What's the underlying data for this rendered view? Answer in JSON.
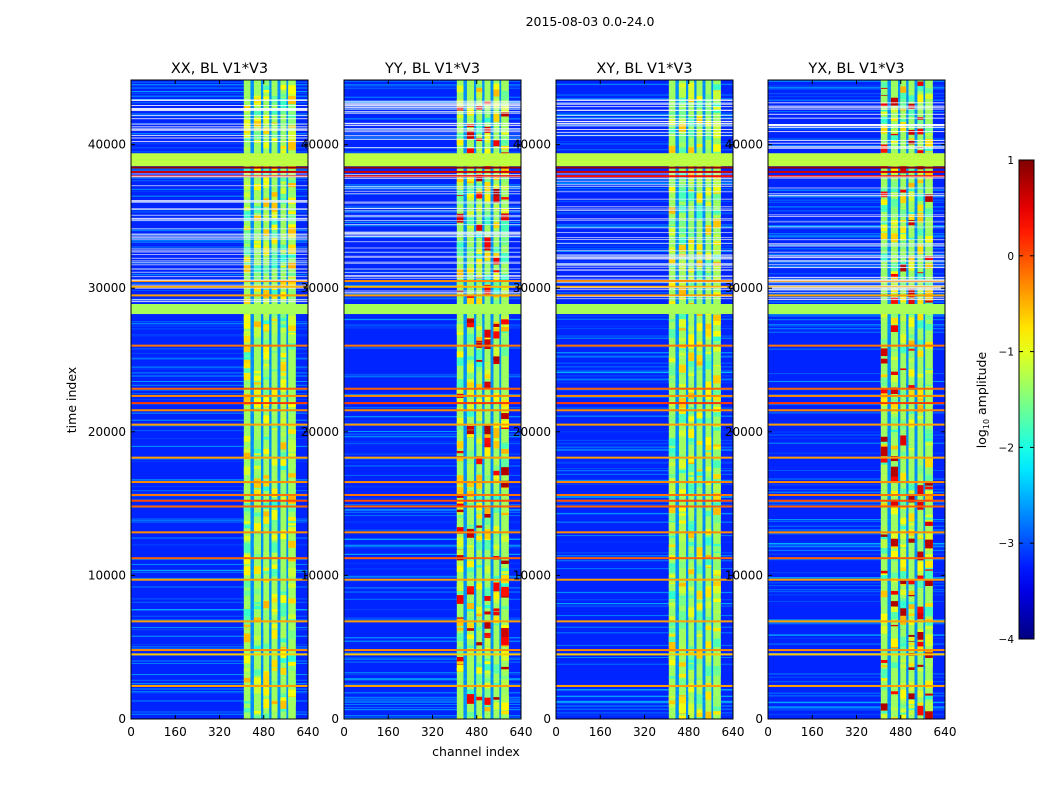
{
  "chart_data": {
    "type": "heatmap",
    "suptitle": "2015-08-03 0.0-24.0",
    "xlabel": "channel index",
    "ylabel": "time index",
    "xlim": [
      0,
      640
    ],
    "ylim": [
      0,
      44500
    ],
    "xticks": [
      0,
      160,
      320,
      480,
      640
    ],
    "yticks": [
      0,
      10000,
      20000,
      30000,
      40000
    ],
    "panels": [
      {
        "title": "XX, BL V1*V3",
        "product": "XX"
      },
      {
        "title": "YY, BL V1*V3",
        "product": "YY"
      },
      {
        "title": "XY, BL V1*V3",
        "product": "XY"
      },
      {
        "title": "YX, BL V1*V3",
        "product": "YX"
      }
    ],
    "background_level": -3.2,
    "rfi_channel_band": [
      408,
      600
    ],
    "rfi_channel_columns": [
      [
        408,
        432
      ],
      [
        444,
        470
      ],
      [
        478,
        500
      ],
      [
        508,
        530
      ],
      [
        540,
        562
      ],
      [
        568,
        596
      ]
    ],
    "flagged_time_blocks": [
      {
        "start": 38500,
        "end": 39400,
        "level": -1.2
      },
      {
        "start": 28200,
        "end": 28900,
        "level": -1.3
      }
    ],
    "strong_time_lines": [
      {
        "t": 38400,
        "level": 0.9
      },
      {
        "t": 38100,
        "level": 0.6
      },
      {
        "t": 37800,
        "level": 0.3
      },
      {
        "t": 30500,
        "level": -0.3
      },
      {
        "t": 30100,
        "level": -0.5
      },
      {
        "t": 29500,
        "level": -0.4
      },
      {
        "t": 26000,
        "level": -0.2
      },
      {
        "t": 23000,
        "level": -0.1
      },
      {
        "t": 22500,
        "level": -0.3
      },
      {
        "t": 22000,
        "level": 0.1
      },
      {
        "t": 21500,
        "level": -0.3
      },
      {
        "t": 20500,
        "level": -0.4
      },
      {
        "t": 18200,
        "level": -0.4
      },
      {
        "t": 16500,
        "level": -0.3
      },
      {
        "t": 15600,
        "level": -0.2
      },
      {
        "t": 15200,
        "level": 0.0
      },
      {
        "t": 14800,
        "level": -0.1
      },
      {
        "t": 13000,
        "level": -0.3
      },
      {
        "t": 11200,
        "level": -0.1
      },
      {
        "t": 9700,
        "level": -0.4
      },
      {
        "t": 6800,
        "level": -0.4
      },
      {
        "t": 4800,
        "level": -0.3
      },
      {
        "t": 4500,
        "level": -0.6
      },
      {
        "t": 2300,
        "level": -0.4
      }
    ],
    "colorbar": {
      "label": "log10 amplitude",
      "label_prefix": "log",
      "label_sub": "10",
      "label_suffix": " amplitude",
      "range": [
        -4,
        1
      ],
      "ticks": [
        1,
        0,
        -1,
        -2,
        -3,
        -4
      ],
      "tick_labels": [
        "1",
        "0",
        "−1",
        "−2",
        "−3",
        "−4"
      ],
      "colormap": "jet"
    }
  }
}
